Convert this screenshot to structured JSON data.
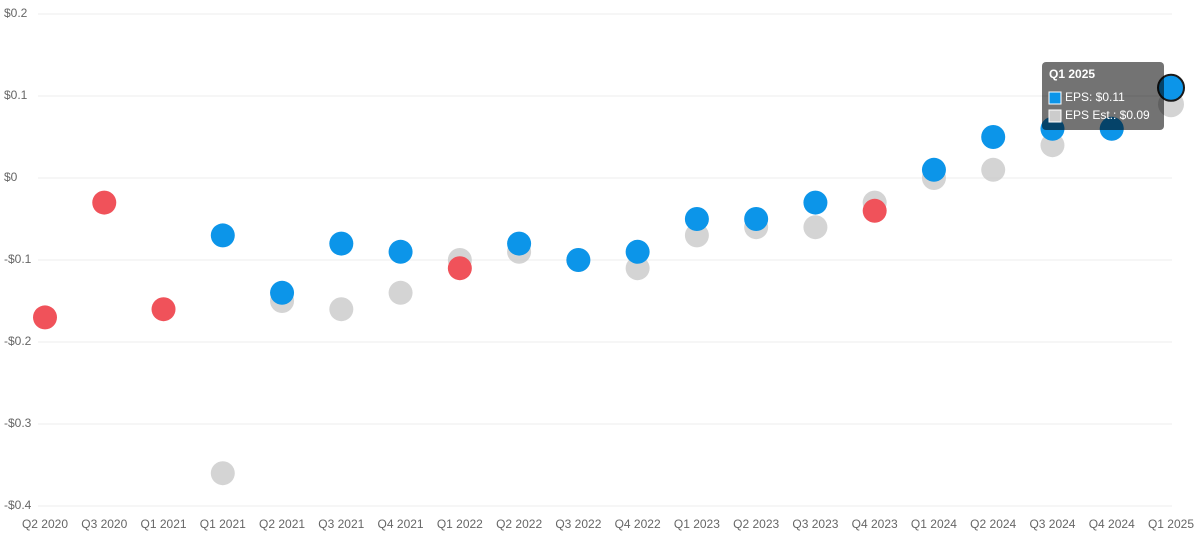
{
  "chart_data": {
    "type": "scatter",
    "categories": [
      "Q2 2020",
      "Q3 2020",
      "Q1 2021",
      "Q1 2021",
      "Q2 2021",
      "Q3 2021",
      "Q4 2021",
      "Q1 2022",
      "Q2 2022",
      "Q3 2022",
      "Q4 2022",
      "Q1 2023",
      "Q2 2023",
      "Q3 2023",
      "Q4 2023",
      "Q1 2024",
      "Q2 2024",
      "Q3 2024",
      "Q4 2024",
      "Q1 2025"
    ],
    "series": [
      {
        "color": "#cccccc",
        "values": [
          null,
          null,
          null,
          -0.36,
          -0.15,
          -0.16,
          -0.14,
          -0.1,
          -0.09,
          -0.1,
          -0.11,
          -0.07,
          -0.06,
          -0.06,
          -0.03,
          0.0,
          0.01,
          0.04,
          0.06,
          0.09
        ]
      },
      {
        "colors": [
          "#f0525a",
          "#f0525a",
          "#f0525a",
          "#0c95e9",
          "#0c95e9",
          "#0c95e9",
          "#0c95e9",
          "#f0525a",
          "#0c95e9",
          "#0c95e9",
          "#0c95e9",
          "#0c95e9",
          "#0c95e9",
          "#0c95e9",
          "#f0525a",
          "#0c95e9",
          "#0c95e9",
          "#0c95e9",
          "#0c95e9",
          "#0c95e9"
        ],
        "values": [
          -0.17,
          -0.03,
          -0.16,
          -0.07,
          -0.14,
          -0.08,
          -0.09,
          -0.11,
          -0.08,
          -0.1,
          -0.09,
          -0.05,
          -0.05,
          -0.03,
          -0.04,
          0.01,
          0.05,
          0.06,
          0.06,
          0.11
        ]
      }
    ],
    "ylim": [
      -0.4,
      0.2
    ],
    "yticks": [
      {
        "value": -0.4,
        "label": "-$0.4"
      },
      {
        "value": -0.3,
        "label": "-$0.3"
      },
      {
        "value": -0.2,
        "label": "-$0.2"
      },
      {
        "value": -0.1,
        "label": "-$0.1"
      },
      {
        "value": 0,
        "label": "$0"
      },
      {
        "value": 0.1,
        "label": "$0.1"
      },
      {
        "value": 0.2,
        "label": "$0.2"
      }
    ],
    "grid": true,
    "tooltip": {
      "title": "Q1 2025",
      "lines": [
        "EPS: $0.11",
        "EPS Est.: $0.09"
      ]
    }
  }
}
